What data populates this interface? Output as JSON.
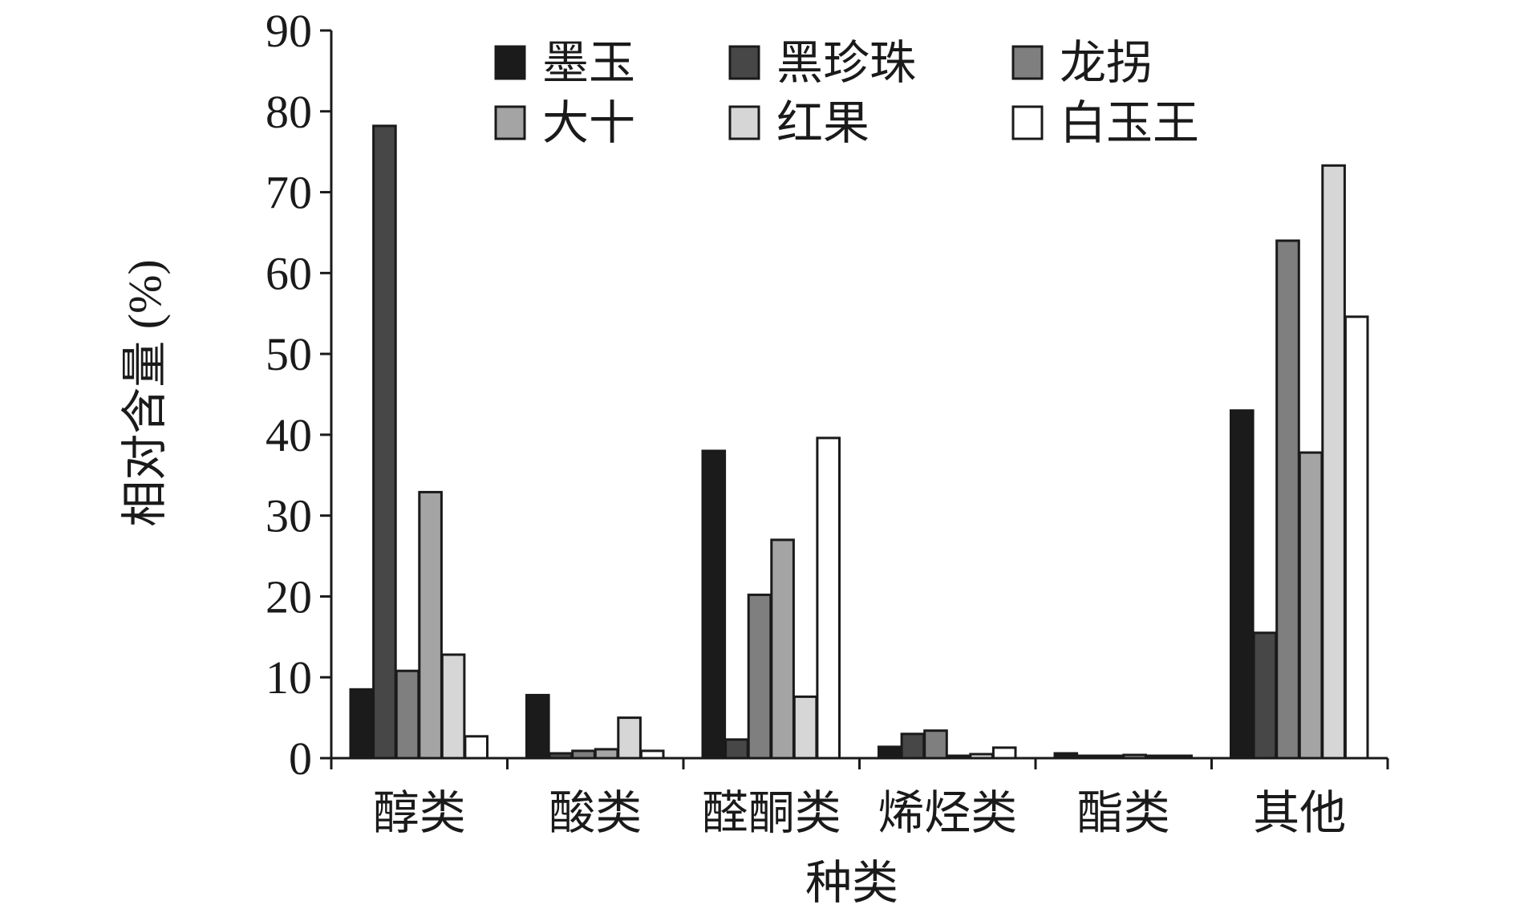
{
  "chart_data": {
    "type": "bar",
    "title": "",
    "xlabel": "种类",
    "ylabel": "相对含量 (%)",
    "ylim": [
      0,
      90
    ],
    "yticks": [
      "0",
      "10",
      "20",
      "30",
      "40",
      "50",
      "60",
      "70",
      "80",
      "90"
    ],
    "categories": [
      "醇类",
      "酸类",
      "醛酮类",
      "烯烃类",
      "酯类",
      "其他"
    ],
    "legend_position": "top",
    "grid": false,
    "series": [
      {
        "name": "墨玉",
        "color": "#1b1b1b",
        "values": [
          8.5,
          7.8,
          38.0,
          1.4,
          0.6,
          43.0
        ]
      },
      {
        "name": "黑珍珠",
        "color": "#474747",
        "values": [
          78.2,
          0.6,
          2.3,
          3.0,
          0.3,
          15.5
        ]
      },
      {
        "name": "龙拐",
        "color": "#7f7f7f",
        "values": [
          10.8,
          0.9,
          20.2,
          3.4,
          0.3,
          64.0
        ]
      },
      {
        "name": "大十",
        "color": "#a4a4a4",
        "values": [
          32.9,
          1.1,
          27.0,
          0.3,
          0.4,
          37.8
        ]
      },
      {
        "name": "红果",
        "color": "#d6d6d6",
        "values": [
          12.8,
          5.0,
          7.6,
          0.5,
          0.3,
          73.3
        ]
      },
      {
        "name": "白玉王",
        "color": "#ffffff",
        "values": [
          2.7,
          0.9,
          39.6,
          1.3,
          0.3,
          54.6
        ]
      }
    ]
  }
}
